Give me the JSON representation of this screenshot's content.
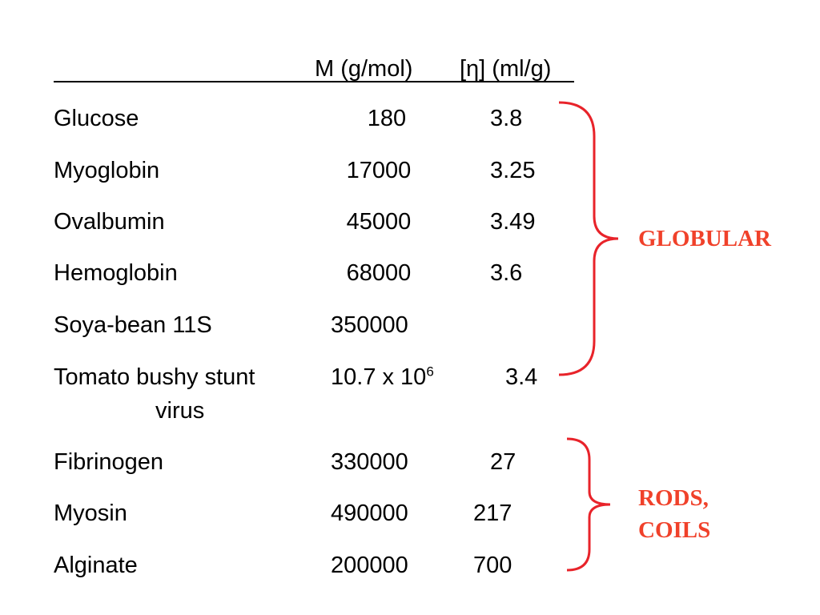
{
  "header": {
    "mass_label": "M (g/mol)",
    "viscosity_label": "[η] (ml/g)"
  },
  "rows": [
    {
      "name": "Glucose",
      "mass": "180",
      "viscosity": "3.8"
    },
    {
      "name": "Myoglobin",
      "mass": "17000",
      "viscosity": "3.25"
    },
    {
      "name": "Ovalbumin",
      "mass": "45000",
      "viscosity": "3.49"
    },
    {
      "name": "Hemoglobin",
      "mass": "68000",
      "viscosity": "3.6"
    },
    {
      "name": "Soya-bean 11S",
      "mass": "350000",
      "viscosity": ""
    },
    {
      "name": "Tomato bushy stunt",
      "name_cont": "virus",
      "mass_base": "10.7 x 10",
      "mass_exp": "6",
      "viscosity": "3.4"
    },
    {
      "name": "Fibrinogen",
      "mass": "330000",
      "viscosity": "27"
    },
    {
      "name": "Myosin",
      "mass": "490000",
      "viscosity": "217"
    },
    {
      "name": "Alginate",
      "mass": "200000",
      "viscosity": "700"
    }
  ],
  "groups": {
    "globular": {
      "label": "GLOBULAR",
      "color": "#f0412a"
    },
    "rods_coils": {
      "label_line1": "RODS,",
      "label_line2": "COILS",
      "color": "#f0412a"
    }
  },
  "brace_color": "#e8232a"
}
